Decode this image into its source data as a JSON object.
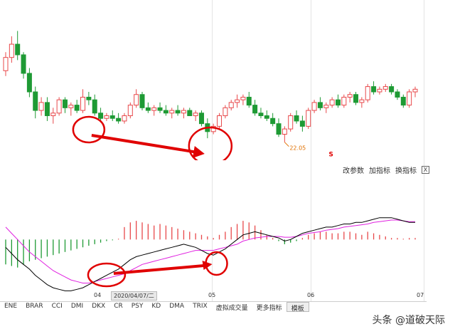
{
  "toolbar": {
    "items": [
      "改参数",
      "加指标",
      "换指标"
    ],
    "close": "X"
  },
  "price_annotation": {
    "low_label": "22.05",
    "signal_mark": "S"
  },
  "date_axis": {
    "ticks": [
      "04",
      "05",
      "06",
      "07"
    ],
    "cursor_date": "2020/04/07/二"
  },
  "indicator_tabs": [
    "ENE",
    "BRAR",
    "CCI",
    "DMI",
    "DKX",
    "CR",
    "PSY",
    "KD",
    "DMA",
    "TRIX",
    "虚拟成交量",
    "更多指标",
    "模板"
  ],
  "watermark": "头条 @道破天际",
  "colors": {
    "up": "#e8484a",
    "down": "#1e9a34",
    "dif": "#000000",
    "dea": "#e020e0",
    "annotation": "#e00000"
  },
  "chart_data": [
    {
      "type": "candlestick",
      "title": "",
      "ohlc": [
        [
          24.6,
          25.3,
          24.4,
          25.1
        ],
        [
          25.1,
          25.9,
          24.9,
          25.6
        ],
        [
          25.6,
          26.1,
          25.0,
          25.2
        ],
        [
          25.2,
          25.3,
          24.3,
          24.5
        ],
        [
          24.5,
          24.7,
          23.6,
          23.8
        ],
        [
          23.8,
          24.0,
          22.8,
          23.1
        ],
        [
          23.1,
          23.6,
          22.9,
          23.4
        ],
        [
          23.4,
          23.6,
          22.7,
          22.9
        ],
        [
          22.9,
          23.2,
          22.6,
          23.0
        ],
        [
          23.0,
          23.6,
          22.9,
          23.5
        ],
        [
          23.5,
          23.6,
          23.0,
          23.2
        ],
        [
          23.2,
          23.4,
          22.9,
          23.3
        ],
        [
          23.3,
          23.5,
          23.0,
          23.1
        ],
        [
          23.1,
          23.9,
          23.0,
          23.6
        ],
        [
          23.6,
          23.8,
          23.3,
          23.5
        ],
        [
          23.5,
          23.7,
          22.9,
          23.0
        ],
        [
          23.0,
          23.2,
          22.7,
          22.8
        ],
        [
          22.8,
          23.0,
          22.7,
          22.9
        ],
        [
          22.9,
          23.1,
          22.7,
          22.8
        ],
        [
          22.8,
          23.0,
          22.6,
          22.7
        ],
        [
          22.7,
          23.0,
          22.6,
          22.9
        ],
        [
          22.9,
          23.4,
          22.8,
          23.3
        ],
        [
          23.3,
          23.9,
          23.2,
          23.7
        ],
        [
          23.7,
          23.8,
          23.1,
          23.2
        ],
        [
          23.2,
          23.4,
          23.0,
          23.1
        ],
        [
          23.1,
          23.3,
          22.9,
          23.2
        ],
        [
          23.2,
          23.4,
          23.0,
          23.1
        ],
        [
          23.1,
          23.3,
          22.9,
          23.0
        ],
        [
          23.0,
          23.2,
          22.8,
          23.1
        ],
        [
          23.1,
          23.3,
          22.9,
          23.0
        ],
        [
          23.0,
          23.2,
          22.8,
          23.1
        ],
        [
          23.1,
          23.2,
          22.9,
          22.9
        ],
        [
          22.9,
          23.1,
          22.7,
          23.0
        ],
        [
          23.0,
          23.1,
          22.5,
          22.6
        ],
        [
          22.6,
          22.8,
          22.05,
          22.3
        ],
        [
          22.3,
          22.6,
          22.2,
          22.5
        ],
        [
          22.5,
          23.0,
          22.4,
          22.9
        ],
        [
          22.9,
          23.3,
          22.8,
          23.2
        ],
        [
          23.2,
          23.5,
          23.1,
          23.4
        ],
        [
          23.4,
          23.7,
          23.2,
          23.5
        ],
        [
          23.5,
          23.7,
          23.3,
          23.6
        ],
        [
          23.6,
          23.8,
          23.2,
          23.3
        ],
        [
          23.3,
          23.5,
          22.9,
          23.0
        ],
        [
          23.0,
          23.2,
          22.8,
          22.9
        ],
        [
          22.9,
          23.1,
          22.7,
          22.8
        ],
        [
          22.8,
          23.0,
          22.5,
          22.6
        ],
        [
          22.6,
          22.8,
          22.1,
          22.2
        ],
        [
          22.2,
          22.5,
          21.9,
          22.4
        ],
        [
          22.4,
          23.0,
          22.3,
          22.9
        ],
        [
          22.9,
          23.1,
          22.6,
          22.7
        ],
        [
          22.7,
          22.9,
          22.3,
          22.5
        ],
        [
          22.5,
          23.2,
          22.4,
          23.1
        ],
        [
          23.1,
          23.5,
          23.0,
          23.4
        ],
        [
          23.4,
          23.6,
          23.1,
          23.2
        ],
        [
          23.2,
          23.4,
          23.0,
          23.3
        ],
        [
          23.3,
          23.6,
          23.2,
          23.5
        ],
        [
          23.5,
          23.7,
          23.2,
          23.3
        ],
        [
          23.3,
          23.7,
          23.2,
          23.6
        ],
        [
          23.6,
          23.8,
          23.4,
          23.7
        ],
        [
          23.7,
          23.8,
          23.3,
          23.4
        ],
        [
          23.4,
          23.6,
          23.2,
          23.5
        ],
        [
          23.5,
          24.1,
          23.4,
          24.0
        ],
        [
          24.0,
          24.2,
          23.7,
          23.8
        ],
        [
          23.8,
          24.0,
          23.7,
          23.9
        ],
        [
          23.9,
          24.1,
          23.8,
          24.0
        ],
        [
          24.0,
          24.1,
          23.7,
          23.8
        ],
        [
          23.8,
          23.9,
          23.5,
          23.6
        ],
        [
          23.6,
          23.7,
          23.2,
          23.3
        ],
        [
          23.3,
          23.9,
          23.2,
          23.8
        ],
        [
          23.8,
          24.0,
          23.6,
          23.9
        ]
      ],
      "yrange": [
        21.3,
        27.0
      ],
      "date_labels": [
        "04",
        "05",
        "06",
        "07"
      ]
    },
    {
      "type": "macd",
      "histogram": [
        -1.6,
        -1.7,
        -1.8,
        -1.6,
        -1.4,
        -1.3,
        -1.2,
        -1.1,
        -1.0,
        -0.9,
        -0.8,
        -0.7,
        -0.6,
        -0.5,
        -0.4,
        -0.3,
        -0.2,
        -0.1,
        -0.05,
        0.05,
        0.8,
        1.1,
        1.2,
        1.1,
        1.0,
        0.9,
        1.0,
        0.9,
        0.8,
        0.7,
        0.6,
        0.5,
        0.4,
        0.3,
        0.2,
        0.1,
        0.3,
        0.5,
        0.8,
        1.0,
        1.2,
        1.1,
        0.9,
        0.6,
        0.3,
        0.1,
        -0.1,
        -0.3,
        -0.2,
        -0.1,
        0.1,
        0.3,
        0.4,
        0.5,
        0.5,
        0.4,
        0.4,
        0.5,
        0.5,
        0.4,
        0.3,
        0.5,
        0.4,
        0.3,
        0.2,
        0.1,
        0.1,
        0.05,
        0.1,
        0.1
      ],
      "dif": [
        -0.5,
        -0.9,
        -1.3,
        -1.6,
        -1.9,
        -2.3,
        -2.6,
        -2.9,
        -3.1,
        -3.2,
        -3.3,
        -3.3,
        -3.2,
        -3.1,
        -2.9,
        -2.7,
        -2.5,
        -2.3,
        -2.1,
        -1.9,
        -1.6,
        -1.3,
        -1.1,
        -1.0,
        -0.9,
        -0.8,
        -0.7,
        -0.6,
        -0.5,
        -0.4,
        -0.3,
        -0.4,
        -0.5,
        -0.7,
        -0.9,
        -1.0,
        -0.8,
        -0.6,
        -0.3,
        0.0,
        0.3,
        0.4,
        0.5,
        0.4,
        0.3,
        0.2,
        0.1,
        -0.1,
        0.0,
        0.2,
        0.4,
        0.5,
        0.6,
        0.7,
        0.8,
        0.8,
        0.9,
        1.0,
        1.0,
        1.1,
        1.1,
        1.2,
        1.3,
        1.4,
        1.4,
        1.4,
        1.3,
        1.2,
        1.1,
        1.1
      ],
      "dea": [
        0.8,
        0.4,
        0.0,
        -0.4,
        -0.8,
        -1.1,
        -1.4,
        -1.7,
        -2.0,
        -2.2,
        -2.4,
        -2.6,
        -2.7,
        -2.8,
        -2.8,
        -2.7,
        -2.6,
        -2.5,
        -2.4,
        -2.3,
        -2.2,
        -2.0,
        -1.8,
        -1.6,
        -1.5,
        -1.4,
        -1.3,
        -1.2,
        -1.1,
        -1.0,
        -0.9,
        -0.8,
        -0.7,
        -0.7,
        -0.7,
        -0.7,
        -0.6,
        -0.5,
        -0.4,
        -0.3,
        -0.1,
        0.0,
        0.1,
        0.15,
        0.2,
        0.2,
        0.2,
        0.15,
        0.15,
        0.2,
        0.3,
        0.4,
        0.45,
        0.5,
        0.6,
        0.65,
        0.7,
        0.8,
        0.85,
        0.9,
        0.95,
        1.0,
        1.1,
        1.15,
        1.2,
        1.25,
        1.25,
        1.2,
        1.15,
        1.15
      ],
      "yrange": [
        -3.6,
        1.8
      ]
    }
  ]
}
